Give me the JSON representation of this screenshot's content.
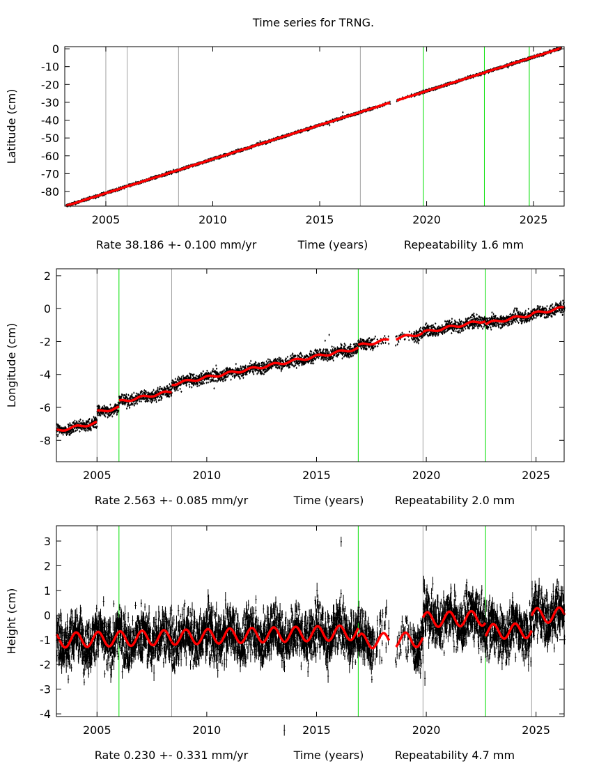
{
  "title": "Time series for TRNG.",
  "colors": {
    "data": "#000000",
    "model": "#ff0000",
    "break_gray": "#a0a0a0",
    "break_green": "#00e000"
  },
  "chart_data": [
    {
      "type": "scatter",
      "ylabel": "Latitude (cm)",
      "xlabel": "Time (years)",
      "rate_label": "Rate 38.186 +- 0.100 mm/yr",
      "repeat_label": "Repeatability 1.6 mm",
      "xlim": [
        2003.08,
        2026.43
      ],
      "ylim": [
        -88.2,
        1.2
      ],
      "xticks": [
        "2005",
        "2010",
        "2015",
        "2020",
        "2025"
      ],
      "yticks": [
        "0",
        "-10",
        "-20",
        "-30",
        "-40",
        "-50",
        "-60",
        "-70",
        "-80"
      ],
      "rate_cm_per_yr": 3.8186,
      "seasonal_amp_cm": 0.05,
      "noise_cm": 0.35,
      "segments": [
        {
          "start": 2003.15,
          "end": 2026.3,
          "value_at_2015": -42.75
        }
      ],
      "gaps": [
        [
          2018.3,
          2018.6
        ]
      ],
      "breaks": [
        {
          "year": 2005.0,
          "type": "gray"
        },
        {
          "year": 2006.0,
          "type": "gray"
        },
        {
          "year": 2008.4,
          "type": "gray"
        },
        {
          "year": 2016.9,
          "type": "gray"
        },
        {
          "year": 2019.85,
          "type": "green"
        },
        {
          "year": 2022.7,
          "type": "green"
        },
        {
          "year": 2024.8,
          "type": "green"
        }
      ]
    },
    {
      "type": "scatter",
      "ylabel": "Longitude (cm)",
      "xlabel": "Time (years)",
      "rate_label": "Rate 2.563 +- 0.085 mm/yr",
      "repeat_label": "Repeatability 2.0 mm",
      "xlim": [
        2003.15,
        2026.28
      ],
      "ylim": [
        -9.3,
        2.42
      ],
      "xticks": [
        "2005",
        "2010",
        "2015",
        "2020",
        "2025"
      ],
      "yticks": [
        "2",
        "0",
        "-2",
        "-4",
        "-6",
        "-8"
      ],
      "rate_cm_per_yr": 0.2563,
      "seasonal_amp_cm": 0.08,
      "noise_cm": 0.18,
      "segments": [
        {
          "start": 2003.15,
          "end": 2005.0,
          "value_at_2015": -4.38
        },
        {
          "start": 2005.0,
          "end": 2006.0,
          "value_at_2015": -3.72
        },
        {
          "start": 2006.0,
          "end": 2008.4,
          "value_at_2015": -3.35
        },
        {
          "start": 2008.4,
          "end": 2016.9,
          "value_at_2015": -2.9
        },
        {
          "start": 2016.9,
          "end": 2019.85,
          "value_at_2015": -2.74
        },
        {
          "start": 2019.85,
          "end": 2022.7,
          "value_at_2015": -2.69
        },
        {
          "start": 2022.7,
          "end": 2024.8,
          "value_at_2015": -2.88
        },
        {
          "start": 2024.8,
          "end": 2026.3,
          "value_at_2015": -2.84
        }
      ],
      "gaps": [
        [
          2018.3,
          2018.6
        ]
      ],
      "breaks": [
        {
          "year": 2005.0,
          "type": "gray"
        },
        {
          "year": 2006.0,
          "type": "green"
        },
        {
          "year": 2008.4,
          "type": "gray"
        },
        {
          "year": 2016.9,
          "type": "green"
        },
        {
          "year": 2019.85,
          "type": "gray"
        },
        {
          "year": 2022.7,
          "type": "green"
        },
        {
          "year": 2024.8,
          "type": "gray"
        }
      ]
    },
    {
      "type": "scatter",
      "ylabel": "Height (cm)",
      "xlabel": "Time (years)",
      "rate_label": "Rate 0.230 +- 0.331 mm/yr",
      "repeat_label": "Repeatability 4.7 mm",
      "xlim": [
        2003.15,
        2026.28
      ],
      "ylim": [
        -4.11,
        3.62
      ],
      "xticks": [
        "2005",
        "2010",
        "2015",
        "2020",
        "2025"
      ],
      "yticks": [
        "3",
        "2",
        "1",
        "0",
        "-1",
        "-2",
        "-3",
        "-4"
      ],
      "rate_cm_per_yr": 0.023,
      "seasonal_amp_cm": 0.3,
      "noise_cm": 0.5,
      "segments": [
        {
          "start": 2003.15,
          "end": 2008.4,
          "value_at_2015": -0.75
        },
        {
          "start": 2008.4,
          "end": 2016.9,
          "value_at_2015": -0.75
        },
        {
          "start": 2016.9,
          "end": 2019.85,
          "value_at_2015": -1.1
        },
        {
          "start": 2019.85,
          "end": 2022.7,
          "value_at_2015": -0.3
        },
        {
          "start": 2022.7,
          "end": 2024.8,
          "value_at_2015": -0.85
        },
        {
          "start": 2024.8,
          "end": 2026.3,
          "value_at_2015": -0.25
        }
      ],
      "gaps": [
        [
          2018.3,
          2018.6
        ]
      ],
      "breaks": [
        {
          "year": 2005.0,
          "type": "gray"
        },
        {
          "year": 2006.0,
          "type": "green"
        },
        {
          "year": 2008.4,
          "type": "gray"
        },
        {
          "year": 2016.9,
          "type": "green"
        },
        {
          "year": 2019.85,
          "type": "gray"
        },
        {
          "year": 2022.7,
          "type": "green"
        },
        {
          "year": 2024.8,
          "type": "gray"
        }
      ]
    }
  ]
}
